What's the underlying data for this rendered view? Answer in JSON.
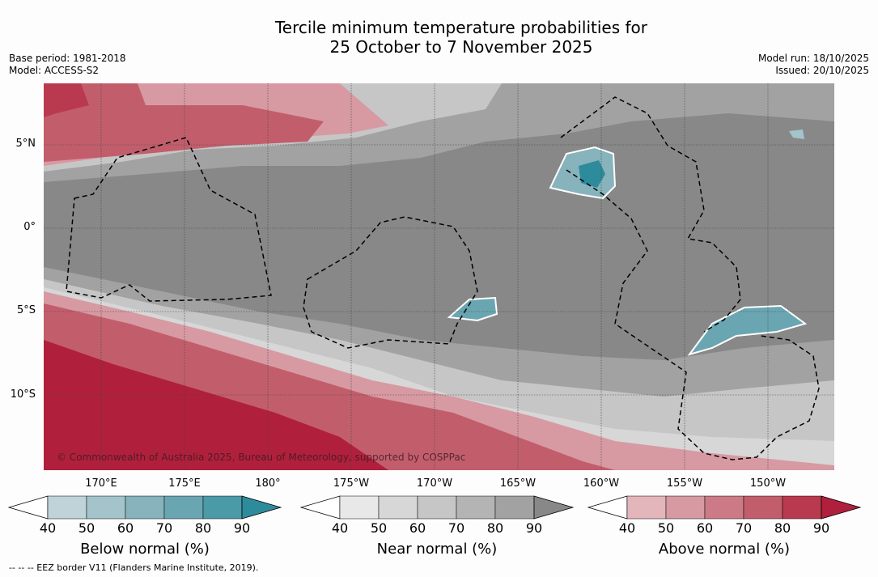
{
  "title_line1": "Tercile minimum temperature probabilities for",
  "title_line2": "25 October to 7 November 2025",
  "meta_left": {
    "base_period": "Base period: 1981-2018",
    "model": "Model: ACCESS-S2"
  },
  "meta_right": {
    "model_run": "Model run: 18/10/2025",
    "issued": "Issued: 20/10/2025"
  },
  "lat_labels": [
    "5°N",
    "0°",
    "5°S",
    "10°S"
  ],
  "lon_labels": [
    "170°E",
    "175°E",
    "180°",
    "175°W",
    "170°W",
    "165°W",
    "160°W",
    "155°W",
    "150°W"
  ],
  "copyright": "© Commonwealth of Australia 2025, Bureau of Meteorology, supported by COSPPac",
  "colorbars": [
    {
      "title": "Below normal (%)",
      "ticks": [
        "40",
        "50",
        "60",
        "70",
        "80",
        "90"
      ],
      "colors": [
        "#bfd3d9",
        "#a3c4ca",
        "#86b3bc",
        "#6aa6b2",
        "#4a9aa8",
        "#2e8b9b"
      ]
    },
    {
      "title": "Near normal (%)",
      "ticks": [
        "40",
        "50",
        "60",
        "70",
        "80",
        "90"
      ],
      "colors": [
        "#e8e8e8",
        "#d7d7d7",
        "#c6c6c6",
        "#b4b4b4",
        "#a2a2a2",
        "#888888"
      ]
    },
    {
      "title": "Above normal (%)",
      "ticks": [
        "40",
        "50",
        "60",
        "70",
        "80",
        "90"
      ],
      "colors": [
        "#e3b6bc",
        "#d79aa2",
        "#cc7b86",
        "#c25e6c",
        "#b93a4e",
        "#b0203c"
      ]
    }
  ],
  "footnote": "-- -- -- EEZ border V11 (Flanders Marine Institute, 2019).",
  "colors": {
    "near_base": "#888888",
    "near_mid": "#a2a2a2",
    "near_light": "#c6c6c6",
    "near_pale": "#d7d7d7",
    "above_light": "#d79aa2",
    "above_mid": "#c25e6c",
    "above_dark": "#b0203c",
    "below_mid": "#6aa6b2",
    "below_dark": "#2e8b9b"
  }
}
